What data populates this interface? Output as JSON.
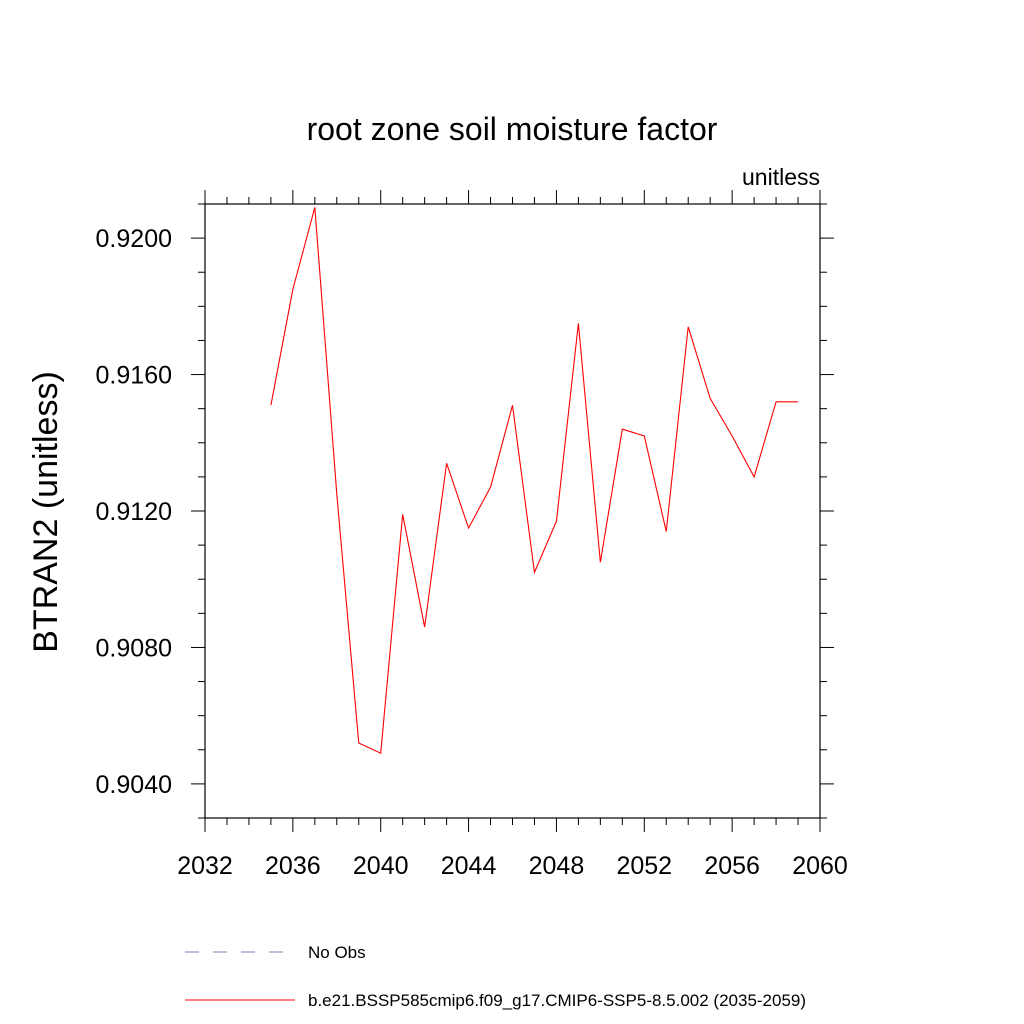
{
  "chart_data": {
    "type": "line",
    "title": "root zone soil moisture factor",
    "units_label": "unitless",
    "xlabel": "",
    "ylabel": "BTRAN2  (unitless)",
    "xlim": [
      2032,
      2060
    ],
    "ylim": [
      0.903,
      0.921
    ],
    "x_ticks": [
      2032,
      2036,
      2040,
      2044,
      2048,
      2052,
      2056,
      2060
    ],
    "y_ticks": [
      0.904,
      0.908,
      0.912,
      0.916,
      0.92
    ],
    "y_tick_labels": [
      "0.9040",
      "0.9080",
      "0.9120",
      "0.9160",
      "0.9200"
    ],
    "series": [
      {
        "name": "b.e21.BSSP585cmip6.f09_g17.CMIP6-SSP5-8.5.002 (2035-2059)",
        "color": "#ff0000",
        "style": "solid",
        "x": [
          2035,
          2036,
          2037,
          2038,
          2039,
          2040,
          2041,
          2042,
          2043,
          2044,
          2045,
          2046,
          2047,
          2048,
          2049,
          2050,
          2051,
          2052,
          2053,
          2054,
          2055,
          2056,
          2057,
          2058,
          2059
        ],
        "y": [
          0.9151,
          0.9185,
          0.9209,
          0.9125,
          0.9052,
          0.9049,
          0.9119,
          0.9086,
          0.9134,
          0.9115,
          0.9127,
          0.9151,
          0.9102,
          0.9117,
          0.9175,
          0.9105,
          0.9144,
          0.9142,
          0.9114,
          0.9174,
          0.9153,
          0.9142,
          0.913,
          0.9152,
          0.9152
        ]
      }
    ],
    "legend": [
      {
        "label": "No Obs",
        "color": "#8080c0",
        "style": "dashed"
      },
      {
        "label": "b.e21.BSSP585cmip6.f09_g17.CMIP6-SSP5-8.5.002 (2035-2059)",
        "color": "#ff0000",
        "style": "solid"
      }
    ]
  }
}
